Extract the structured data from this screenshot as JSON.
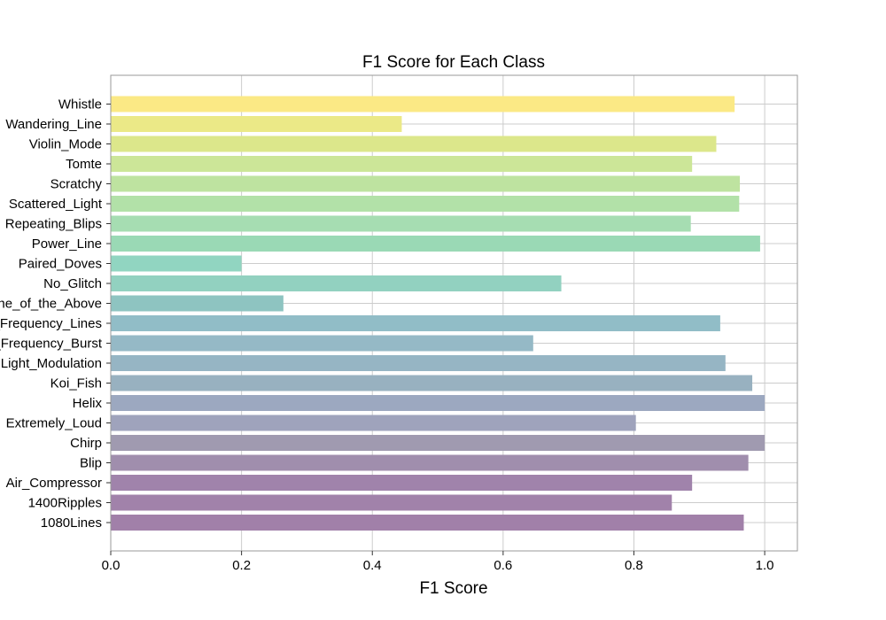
{
  "chart_data": {
    "type": "bar",
    "orientation": "horizontal",
    "title": "F1 Score for Each Class",
    "xlabel": "F1 Score",
    "ylabel": "",
    "xlim": [
      0,
      1.05
    ],
    "xticks": [
      0.0,
      0.2,
      0.4,
      0.6,
      0.8,
      1.0
    ],
    "xtick_labels": [
      "0.0",
      "0.2",
      "0.4",
      "0.6",
      "0.8",
      "1.0"
    ],
    "grid": true,
    "colormap": "viridis",
    "bar_alpha": 0.5,
    "categories": [
      "1080Lines",
      "1400Ripples",
      "Air_Compressor",
      "Blip",
      "Chirp",
      "Extremely_Loud",
      "Helix",
      "Koi_Fish",
      "Light_Modulation",
      "Low_Frequency_Burst",
      "Low_Frequency_Lines",
      "None_of_the_Above",
      "No_Glitch",
      "Paired_Doves",
      "Power_Line",
      "Repeating_Blips",
      "Scattered_Light",
      "Scratchy",
      "Tomte",
      "Violin_Mode",
      "Wandering_Line",
      "Whistle"
    ],
    "values": [
      0.968,
      0.858,
      0.889,
      0.975,
      1.0,
      0.803,
      1.0,
      0.981,
      0.94,
      0.646,
      0.932,
      0.264,
      0.689,
      0.2,
      0.993,
      0.887,
      0.961,
      0.962,
      0.889,
      0.926,
      0.445,
      0.954
    ],
    "colors": [
      "#a180a9",
      "#a182aa",
      "#a083ab",
      "#a08ead",
      "#a09ab0",
      "#9fa3bc",
      "#9ca8c0",
      "#98b1c0",
      "#96b5c4",
      "#95b9c6",
      "#91bdc7",
      "#8ec4c1",
      "#92d1c0",
      "#91d5c1",
      "#9ad9b5",
      "#a6ddb2",
      "#b2e1a8",
      "#bee3a0",
      "#cce698",
      "#dce78b",
      "#ebe987",
      "#fbe985"
    ]
  }
}
